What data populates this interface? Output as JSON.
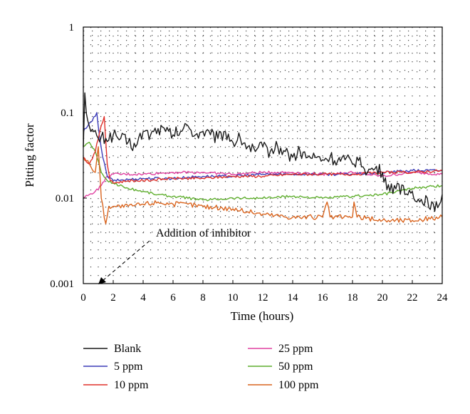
{
  "chart_data": {
    "type": "line",
    "xlabel": "Time (hours)",
    "ylabel": "Pitting factor",
    "xlim": [
      0,
      24
    ],
    "ylim": [
      0.001,
      1
    ],
    "y_scale": "log",
    "x_ticks": [
      "0",
      "2",
      "4",
      "6",
      "8",
      "10",
      "12",
      "14",
      "16",
      "18",
      "20",
      "22",
      "24"
    ],
    "y_ticks": [
      "0.001",
      "0.01",
      "0.1",
      "1"
    ],
    "grid": "dotted",
    "legend_placement": "below",
    "annotation": "Addition of inhibitor",
    "series": [
      {
        "name": "Blank",
        "color": "#1a1a1a",
        "x": [
          0,
          0.1,
          0.3,
          0.5,
          1,
          1.5,
          2,
          2.5,
          3,
          3.5,
          4,
          4.5,
          5,
          5.5,
          6,
          6.5,
          7,
          7.5,
          8,
          8.5,
          9,
          9.5,
          10,
          10.5,
          11,
          11.5,
          12,
          12.5,
          13,
          13.5,
          14,
          14.5,
          15,
          15.5,
          16,
          16.5,
          17,
          17.5,
          18,
          18.5,
          19,
          19.5,
          20,
          20.5,
          21,
          21.5,
          22,
          22.5,
          23,
          23.5,
          24
        ],
        "y": [
          0.04,
          0.17,
          0.08,
          0.06,
          0.05,
          0.05,
          0.055,
          0.05,
          0.045,
          0.04,
          0.06,
          0.055,
          0.065,
          0.06,
          0.055,
          0.06,
          0.07,
          0.055,
          0.06,
          0.055,
          0.05,
          0.06,
          0.045,
          0.05,
          0.04,
          0.035,
          0.04,
          0.035,
          0.04,
          0.035,
          0.03,
          0.035,
          0.03,
          0.03,
          0.028,
          0.03,
          0.027,
          0.028,
          0.025,
          0.03,
          0.02,
          0.022,
          0.02,
          0.012,
          0.015,
          0.011,
          0.012,
          0.009,
          0.01,
          0.007,
          0.011
        ]
      },
      {
        "name": "5 ppm",
        "color": "#3d3db8",
        "x": [
          0,
          0.3,
          0.6,
          0.9,
          1.1,
          1.3,
          1.6,
          2,
          4,
          6,
          8,
          10,
          12,
          14,
          16,
          18,
          20,
          22,
          24
        ],
        "y": [
          0.06,
          0.07,
          0.08,
          0.1,
          0.05,
          0.03,
          0.018,
          0.016,
          0.017,
          0.017,
          0.018,
          0.018,
          0.019,
          0.019,
          0.019,
          0.019,
          0.02,
          0.021,
          0.021
        ]
      },
      {
        "name": "10 ppm",
        "color": "#e0302a",
        "x": [
          0,
          0.4,
          0.8,
          1.1,
          1.4,
          1.6,
          1.8,
          2,
          3,
          4,
          6,
          8,
          10,
          12,
          14,
          16,
          18,
          20,
          22,
          24
        ],
        "y": [
          0.03,
          0.025,
          0.035,
          0.06,
          0.09,
          0.025,
          0.016,
          0.015,
          0.016,
          0.016,
          0.017,
          0.017,
          0.018,
          0.018,
          0.019,
          0.019,
          0.019,
          0.02,
          0.02,
          0.021
        ]
      },
      {
        "name": "25 ppm",
        "color": "#e040a0",
        "x": [
          0,
          0.4,
          0.8,
          1.2,
          1.6,
          2,
          4,
          6,
          8,
          10,
          12,
          14,
          16,
          18,
          20,
          22,
          24
        ],
        "y": [
          0.01,
          0.011,
          0.012,
          0.014,
          0.018,
          0.019,
          0.019,
          0.02,
          0.02,
          0.019,
          0.02,
          0.02,
          0.019,
          0.02,
          0.018,
          0.02,
          0.019
        ]
      },
      {
        "name": "50 ppm",
        "color": "#5fae2e",
        "x": [
          0,
          0.4,
          0.8,
          1.2,
          1.6,
          2,
          3,
          4,
          5,
          6,
          7,
          8,
          10,
          12,
          14,
          16,
          18,
          20,
          22,
          24
        ],
        "y": [
          0.04,
          0.045,
          0.035,
          0.02,
          0.016,
          0.015,
          0.013,
          0.012,
          0.011,
          0.0105,
          0.01,
          0.0095,
          0.01,
          0.01,
          0.0105,
          0.01,
          0.0105,
          0.011,
          0.013,
          0.014
        ]
      },
      {
        "name": "100 ppm",
        "color": "#d9641e",
        "x": [
          0,
          0.4,
          0.8,
          1.0,
          1.2,
          1.5,
          1.7,
          2,
          3,
          4,
          5,
          6,
          7,
          8,
          10,
          12,
          14,
          16,
          16.3,
          16.5,
          18,
          18.1,
          18.3,
          20,
          22,
          24
        ],
        "y": [
          0.03,
          0.025,
          0.02,
          0.04,
          0.01,
          0.005,
          0.008,
          0.008,
          0.008,
          0.0085,
          0.009,
          0.0085,
          0.0085,
          0.008,
          0.0075,
          0.0065,
          0.006,
          0.006,
          0.009,
          0.006,
          0.006,
          0.009,
          0.006,
          0.0055,
          0.0055,
          0.006
        ]
      }
    ]
  }
}
